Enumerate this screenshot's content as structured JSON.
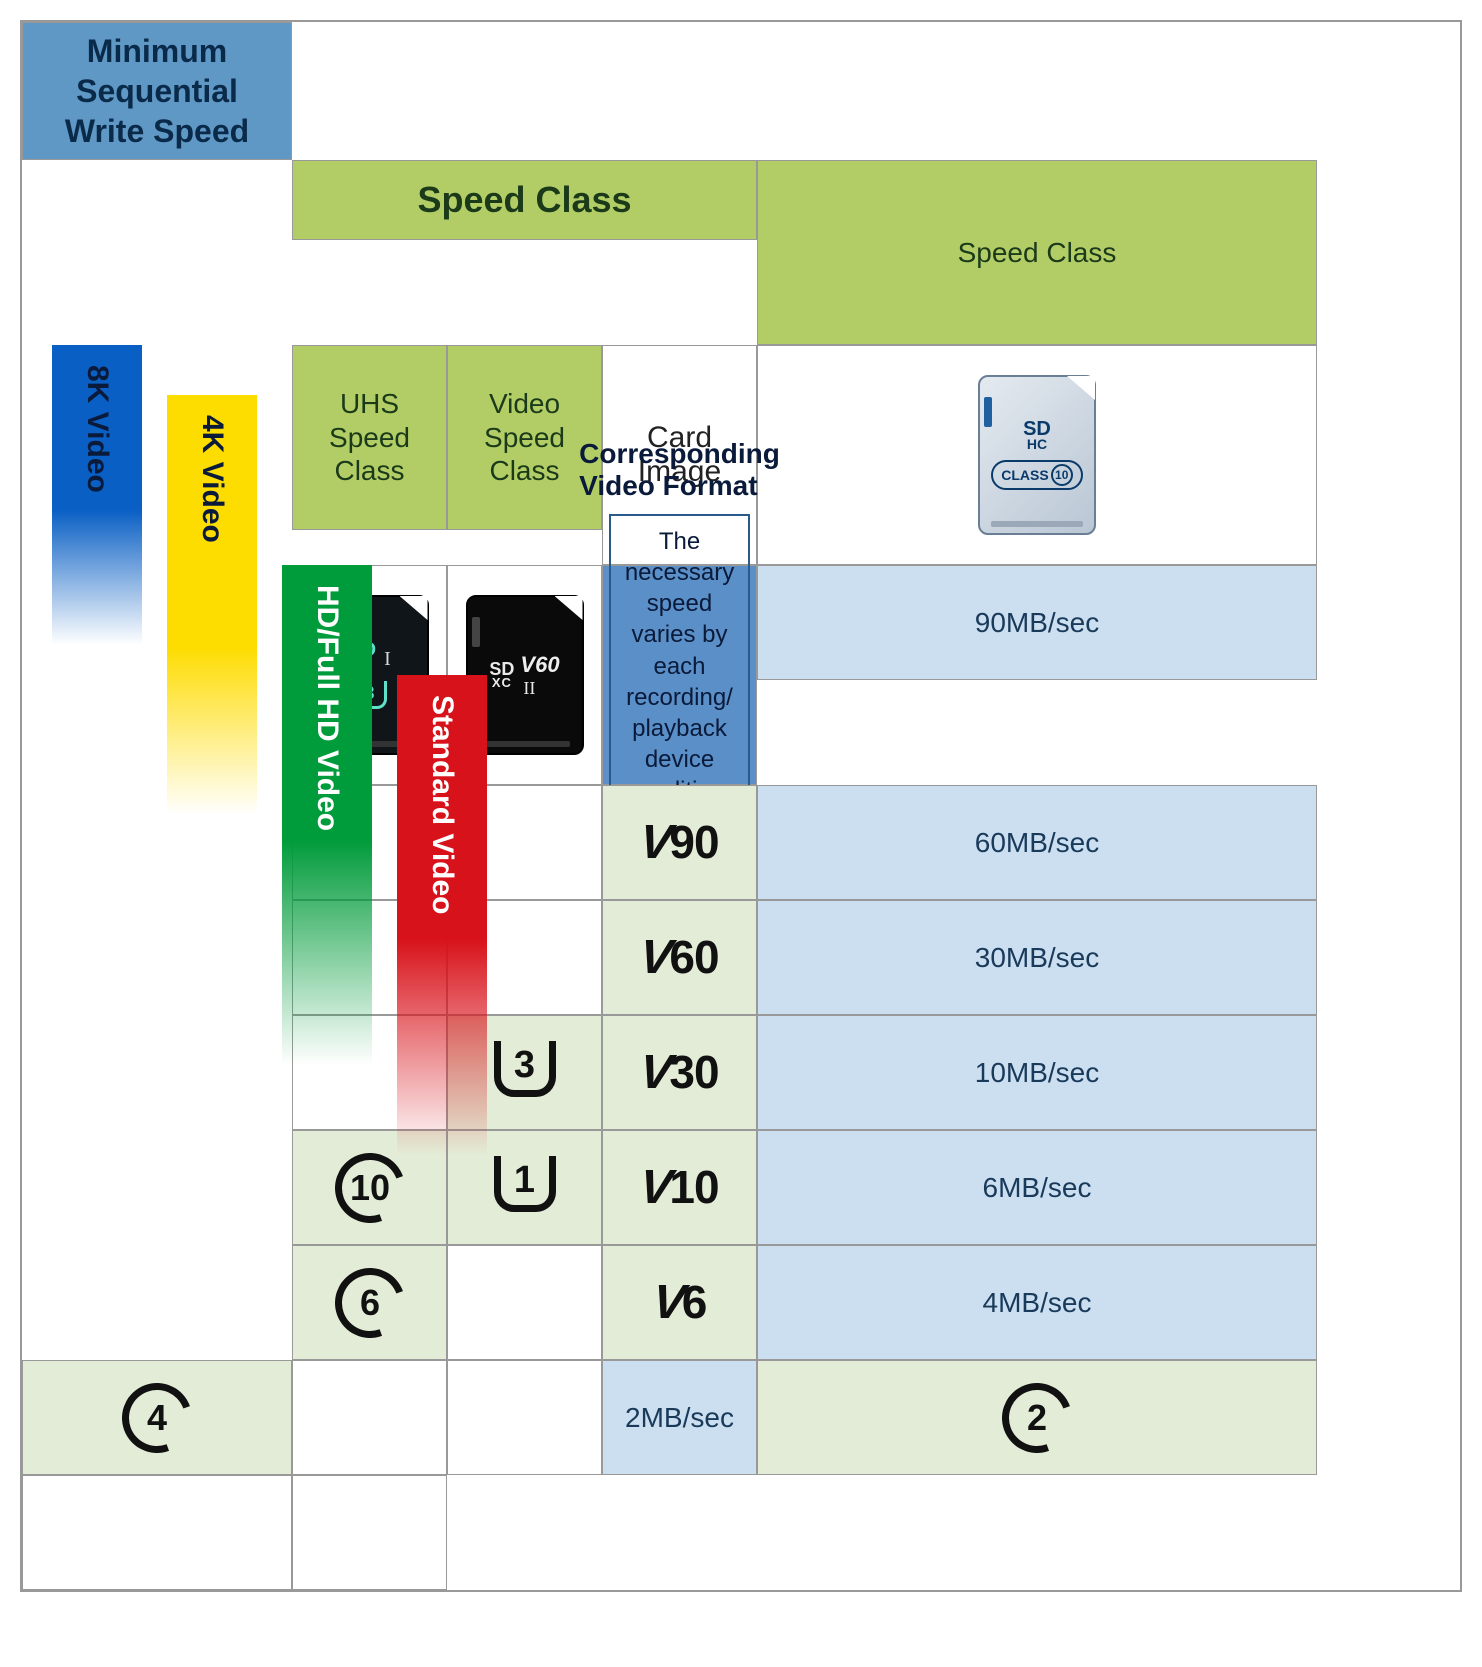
{
  "header": {
    "left_title": "Minimum\nSequential\nWrite Speed",
    "speed_class_title": "Speed Class",
    "sub1": "Speed Class",
    "sub2": "UHS Speed Class",
    "sub3": "Video Speed Class"
  },
  "cardrow": {
    "label": "Card Image",
    "card1": {
      "logo_top": "SD",
      "logo_bottom": "HC",
      "class_label": "CLASS",
      "class_num": "10"
    },
    "card2": {
      "logo_top": "SD",
      "logo_bottom": "XC",
      "bus": "I",
      "uhs": "3"
    },
    "card3": {
      "logo_top": "SD",
      "logo_bottom": "XC",
      "bus": "II",
      "vclass": "V60"
    }
  },
  "video_format": {
    "title": "Corresponding Video Format",
    "note": "The necessary speed varies by each recording/ playback device condition. in the same format."
  },
  "rows": [
    {
      "speed": "90MB/sec",
      "c": "",
      "u": "",
      "v": "V90"
    },
    {
      "speed": "60MB/sec",
      "c": "",
      "u": "",
      "v": "V60"
    },
    {
      "speed": "30MB/sec",
      "c": "",
      "u": "3",
      "v": "V30"
    },
    {
      "speed": "10MB/sec",
      "c": "10",
      "u": "1",
      "v": "V10"
    },
    {
      "speed": "6MB/sec",
      "c": "6",
      "u": "",
      "v": "V6"
    },
    {
      "speed": "4MB/sec",
      "c": "4",
      "u": "",
      "v": ""
    },
    {
      "speed": "2MB/sec",
      "c": "2",
      "u": "",
      "v": ""
    }
  ],
  "bars": {
    "b8k": "8K Video",
    "b4k": "4K Video",
    "bhd": "HD/Full HD Video",
    "bsd": "Standard Video"
  },
  "colors": {
    "blue_hdr": "#5f97c5",
    "green_hdr": "#b3cd66",
    "light_blue": "#cbdff1",
    "light_green": "#e3ecd6",
    "bar_8k": "#0a5fc4",
    "bar_4k": "#fddc00",
    "bar_hd": "#009b3a",
    "bar_sd": "#d8121a"
  }
}
